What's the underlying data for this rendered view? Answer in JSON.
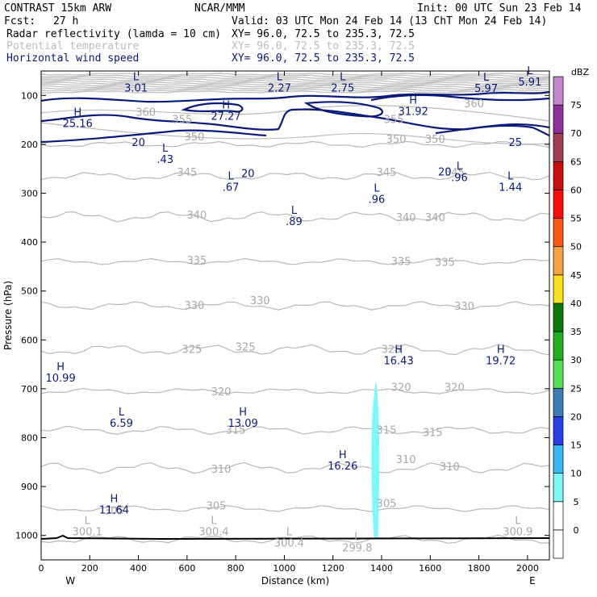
{
  "header": {
    "title": "CONTRAST 15km ARW",
    "org": "NCAR/MMM",
    "init": "Init: 00 UTC Sun 23 Feb 14",
    "fcst_label": "Fcst:",
    "fcst_value": "27 h",
    "valid": "Valid: 03 UTC Mon 24 Feb 14 (13 ChT Mon 24 Feb 14)"
  },
  "fields": [
    {
      "name": "Radar reflectivity (lamda = 10 cm)",
      "xy": "XY=  96.0, 72.5 to 235.3, 72.5",
      "color": "#000000"
    },
    {
      "name": "Potential temperature",
      "xy": "XY=  96.0, 72.5 to 235.3, 72.5",
      "color": "#bbbbbb"
    },
    {
      "name": "Horizontal wind speed",
      "xy": "XY=  96.0, 72.5 to 235.3, 72.5",
      "color": "#0a1a7a"
    }
  ],
  "chart_data": {
    "type": "cross-section",
    "xlabel": "Distance (km)",
    "ylabel": "Pressure (hPa)",
    "xlim": [
      0,
      2090
    ],
    "ylim": [
      1050,
      50
    ],
    "x_ticks": [
      0,
      200,
      400,
      600,
      800,
      1000,
      1200,
      1400,
      1600,
      1800,
      2000
    ],
    "y_ticks": [
      100,
      200,
      300,
      400,
      500,
      600,
      700,
      800,
      900,
      1000
    ],
    "endpoints": {
      "west": "W",
      "east": "E",
      "west_x": 120,
      "east_x": 2020
    },
    "colorbar": {
      "unit": "dBZ",
      "levels": [
        {
          "value": "0",
          "color": "#ffffff"
        },
        {
          "value": "5",
          "color": "#7ef8f8"
        },
        {
          "value": "10",
          "color": "#39b7f0"
        },
        {
          "value": "15",
          "color": "#2a3ee8"
        },
        {
          "value": "20",
          "color": "#3e7cb8"
        },
        {
          "value": "25",
          "color": "#55e155"
        },
        {
          "value": "30",
          "color": "#21ae21"
        },
        {
          "value": "35",
          "color": "#0b7a0b"
        },
        {
          "value": "40",
          "color": "#f8e020"
        },
        {
          "value": "45",
          "color": "#f5a241"
        },
        {
          "value": "50",
          "color": "#fa5a10"
        },
        {
          "value": "55",
          "color": "#f80d0d"
        },
        {
          "value": "60",
          "color": "#c80d0d"
        },
        {
          "value": "65",
          "color": "#a0404f"
        },
        {
          "value": "70",
          "color": "#8e2e98"
        },
        {
          "value": "75",
          "color": "#c384c8"
        }
      ]
    },
    "theta_contour_labels": [
      {
        "text": "360",
        "x": 430,
        "p": 135
      },
      {
        "text": "360",
        "x": 1780,
        "p": 118
      },
      {
        "text": "355",
        "x": 580,
        "p": 150
      },
      {
        "text": "355",
        "x": 1450,
        "p": 150
      },
      {
        "text": "350",
        "x": 630,
        "p": 185
      },
      {
        "text": "350",
        "x": 1460,
        "p": 190
      },
      {
        "text": "350",
        "x": 1620,
        "p": 190
      },
      {
        "text": "345",
        "x": 600,
        "p": 258
      },
      {
        "text": "345",
        "x": 1420,
        "p": 258
      },
      {
        "text": "345",
        "x": 1700,
        "p": 258
      },
      {
        "text": "340",
        "x": 640,
        "p": 345
      },
      {
        "text": "340",
        "x": 1500,
        "p": 350
      },
      {
        "text": "340",
        "x": 1620,
        "p": 350
      },
      {
        "text": "335",
        "x": 640,
        "p": 438
      },
      {
        "text": "335",
        "x": 1480,
        "p": 440
      },
      {
        "text": "335",
        "x": 1660,
        "p": 442
      },
      {
        "text": "330",
        "x": 630,
        "p": 530
      },
      {
        "text": "330",
        "x": 900,
        "p": 520
      },
      {
        "text": "330",
        "x": 1740,
        "p": 532
      },
      {
        "text": "325",
        "x": 620,
        "p": 620
      },
      {
        "text": "325",
        "x": 840,
        "p": 615
      },
      {
        "text": "325",
        "x": 1440,
        "p": 620
      },
      {
        "text": "320",
        "x": 740,
        "p": 707
      },
      {
        "text": "320",
        "x": 1480,
        "p": 698
      },
      {
        "text": "320",
        "x": 1700,
        "p": 698
      },
      {
        "text": "315",
        "x": 800,
        "p": 785
      },
      {
        "text": "315",
        "x": 1420,
        "p": 785
      },
      {
        "text": "315",
        "x": 1610,
        "p": 790
      },
      {
        "text": "310",
        "x": 740,
        "p": 865
      },
      {
        "text": "310",
        "x": 1500,
        "p": 845
      },
      {
        "text": "310",
        "x": 1680,
        "p": 860
      },
      {
        "text": "305",
        "x": 300,
        "p": 950
      },
      {
        "text": "305",
        "x": 720,
        "p": 940
      },
      {
        "text": "305",
        "x": 1420,
        "p": 935
      }
    ],
    "wind_contour_labels": [
      {
        "text": "20",
        "x": 400,
        "p": 197
      },
      {
        "text": "20",
        "x": 850,
        "p": 260
      },
      {
        "text": "20",
        "x": 1660,
        "p": 257
      },
      {
        "text": "25",
        "x": 1950,
        "p": 197
      }
    ],
    "centers": [
      {
        "kind": "L",
        "value": "3.01",
        "x": 390,
        "p": 82,
        "color": "#0a1a7a"
      },
      {
        "kind": "H",
        "value": "25.16",
        "x": 150,
        "p": 155,
        "color": "#0a1a7a"
      },
      {
        "kind": "H",
        "value": "27.27",
        "x": 760,
        "p": 140,
        "color": "#0a1a7a"
      },
      {
        "kind": "L",
        "value": "2.27",
        "x": 980,
        "p": 82,
        "color": "#0a1a7a"
      },
      {
        "kind": "L",
        "value": "2.75",
        "x": 1240,
        "p": 82,
        "color": "#0a1a7a"
      },
      {
        "kind": "H",
        "value": "31.92",
        "x": 1530,
        "p": 130,
        "color": "#0a1a7a"
      },
      {
        "kind": "L",
        "value": "5.97",
        "x": 1830,
        "p": 83,
        "color": "#0a1a7a"
      },
      {
        "kind": "L",
        "value": "5.91",
        "x": 2010,
        "p": 70,
        "color": "#0a1a7a"
      },
      {
        "kind": "L",
        "value": ".43",
        "x": 510,
        "p": 228,
        "color": "#0a1a7a"
      },
      {
        "kind": "L",
        "value": ".67",
        "x": 780,
        "p": 285,
        "color": "#0a1a7a"
      },
      {
        "kind": "L",
        "value": ".89",
        "x": 1040,
        "p": 355,
        "color": "#0a1a7a"
      },
      {
        "kind": "L",
        "value": ".96",
        "x": 1380,
        "p": 310,
        "color": "#0a1a7a"
      },
      {
        "kind": "L",
        "value": ".96",
        "x": 1720,
        "p": 265,
        "color": "#0a1a7a"
      },
      {
        "kind": "L",
        "value": "1.44",
        "x": 1930,
        "p": 285,
        "color": "#0a1a7a"
      },
      {
        "kind": "H",
        "value": "10.99",
        "x": 80,
        "p": 675,
        "color": "#0a1a7a"
      },
      {
        "kind": "L",
        "value": "6.59",
        "x": 330,
        "p": 768,
        "color": "#0a1a7a"
      },
      {
        "kind": "H",
        "value": "13.09",
        "x": 830,
        "p": 768,
        "color": "#0a1a7a"
      },
      {
        "kind": "H",
        "value": "16.43",
        "x": 1470,
        "p": 640,
        "color": "#0a1a7a"
      },
      {
        "kind": "H",
        "value": "19.72",
        "x": 1890,
        "p": 640,
        "color": "#0a1a7a"
      },
      {
        "kind": "H",
        "value": "16.26",
        "x": 1240,
        "p": 855,
        "color": "#0a1a7a"
      },
      {
        "kind": "H",
        "value": "11.64",
        "x": 300,
        "p": 945,
        "color": "#0a1a7a"
      },
      {
        "kind": "L",
        "value": "300.1",
        "x": 190,
        "p": 990,
        "color": "#a8a8a8"
      },
      {
        "kind": "L",
        "value": "300.4",
        "x": 710,
        "p": 990,
        "color": "#a8a8a8"
      },
      {
        "kind": "L",
        "value": "300.4",
        "x": 1020,
        "p": 1013,
        "color": "#a8a8a8"
      },
      {
        "kind": "L",
        "value": "299.8",
        "x": 1300,
        "p": 1023,
        "color": "#a8a8a8"
      },
      {
        "kind": "L",
        "value": "300.9",
        "x": 1960,
        "p": 990,
        "color": "#a8a8a8"
      }
    ]
  }
}
